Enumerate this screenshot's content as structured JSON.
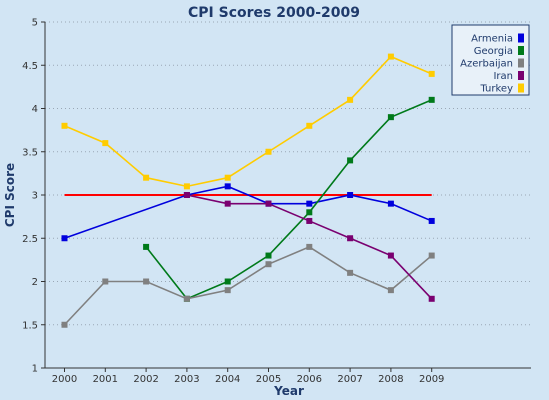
{
  "chart_data": {
    "type": "line",
    "title": "CPI Scores 2000-2009",
    "xlabel": "Year",
    "ylabel": "CPI Score",
    "x": [
      "2000",
      "2001",
      "2002",
      "2003",
      "2004",
      "2005",
      "2006",
      "2007",
      "2008",
      "2009"
    ],
    "ylim": [
      1,
      5
    ],
    "yticks": [
      "1",
      "1.5",
      "2",
      "2.5",
      "3",
      "3.5",
      "4",
      "4.5",
      "5"
    ],
    "grid": "horizontal dotted",
    "legend_position": "top-right",
    "reference_line": {
      "value": 3,
      "color": "#ff0000"
    },
    "series": [
      {
        "name": "Armenia",
        "color": "#0000dd",
        "values": [
          2.5,
          null,
          null,
          3.0,
          3.1,
          2.9,
          2.9,
          3.0,
          2.9,
          2.7
        ]
      },
      {
        "name": "Georgia",
        "color": "#007a1a",
        "values": [
          null,
          null,
          2.4,
          1.8,
          2.0,
          2.3,
          2.8,
          3.4,
          3.9,
          4.1
        ]
      },
      {
        "name": "Azerbaijan",
        "color": "#808080",
        "values": [
          1.5,
          2.0,
          2.0,
          1.8,
          1.9,
          2.2,
          2.4,
          2.1,
          1.9,
          2.3
        ]
      },
      {
        "name": "Iran",
        "color": "#7a0070",
        "values": [
          null,
          null,
          null,
          3.0,
          2.9,
          2.9,
          2.7,
          2.5,
          2.3,
          1.8
        ]
      },
      {
        "name": "Turkey",
        "color": "#ffcc00",
        "values": [
          3.8,
          3.6,
          3.2,
          3.1,
          3.2,
          3.5,
          3.8,
          4.1,
          4.6,
          4.4
        ]
      }
    ]
  }
}
